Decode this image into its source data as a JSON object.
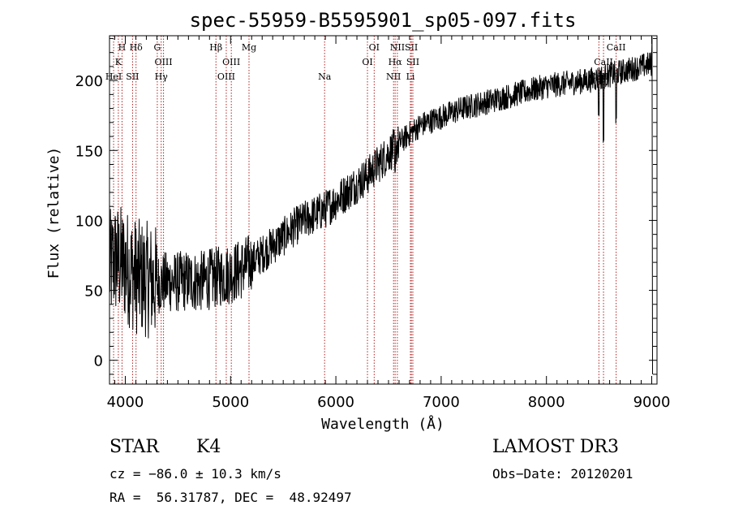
{
  "chart_data": {
    "type": "line",
    "title": "spec-55959-B5595901_sp05-097.fits",
    "xlabel": "Wavelength (Å)",
    "ylabel": "Flux (relative)",
    "xlim": [
      3850,
      9050
    ],
    "ylim": [
      -17,
      232
    ],
    "xticks": [
      4000,
      5000,
      6000,
      7000,
      8000,
      9000
    ],
    "xtick_labels": [
      "4000",
      "5000",
      "6000",
      "7000",
      "8000",
      "9000"
    ],
    "yticks": [
      0,
      50,
      100,
      150,
      200
    ],
    "ytick_labels": [
      "0",
      "50",
      "100",
      "150",
      "200"
    ],
    "line_color": "#000000",
    "marker_color": "#b22222",
    "series": [
      {
        "name": "flux",
        "anchors_x": [
          3850,
          3900,
          3950,
          4000,
          4100,
          4200,
          4300,
          4400,
          4500,
          4600,
          4700,
          4800,
          4900,
          5000,
          5100,
          5200,
          5300,
          5400,
          5500,
          5600,
          5700,
          5800,
          5900,
          6000,
          6100,
          6200,
          6300,
          6400,
          6500,
          6600,
          6700,
          6800,
          7000,
          7200,
          7400,
          7600,
          7800,
          8000,
          8200,
          8400,
          8500,
          8600,
          8700,
          8800,
          8900,
          9000
        ],
        "anchors_y": [
          65,
          72,
          70,
          68,
          60,
          58,
          55,
          56,
          56,
          57,
          56,
          58,
          60,
          62,
          65,
          70,
          76,
          82,
          88,
          95,
          100,
          104,
          108,
          114,
          120,
          126,
          132,
          140,
          148,
          155,
          162,
          168,
          174,
          180,
          184,
          188,
          192,
          196,
          198,
          200,
          202,
          204,
          206,
          208,
          210,
          212
        ]
      }
    ],
    "annotations": [
      {
        "label": "H",
        "wavelength": 3969,
        "row": 0
      },
      {
        "label": "K",
        "wavelength": 3934,
        "row": 1
      },
      {
        "label": "HeI",
        "wavelength": 3889,
        "row": 2
      },
      {
        "label": "Hδ",
        "wavelength": 4102,
        "row": 0
      },
      {
        "label": "SII",
        "wavelength": 4069,
        "row": 2
      },
      {
        "label": "G",
        "wavelength": 4304,
        "row": 0
      },
      {
        "label": "OIII",
        "wavelength": 4363,
        "row": 1
      },
      {
        "label": "Hγ",
        "wavelength": 4341,
        "row": 2
      },
      {
        "label": "Hβ",
        "wavelength": 4861,
        "row": 0
      },
      {
        "label": "OIII",
        "wavelength": 5007,
        "row": 1
      },
      {
        "label": "OIII",
        "wavelength": 4959,
        "row": 2
      },
      {
        "label": "Mg",
        "wavelength": 5175,
        "row": 0
      },
      {
        "label": "Na",
        "wavelength": 5893,
        "row": 2
      },
      {
        "label": "OI",
        "wavelength": 6364,
        "row": 0
      },
      {
        "label": "OI",
        "wavelength": 6300,
        "row": 1
      },
      {
        "label": "NII",
        "wavelength": 6584,
        "row": 0
      },
      {
        "label": "SII",
        "wavelength": 6717,
        "row": 0
      },
      {
        "label": "Hα",
        "wavelength": 6563,
        "row": 1
      },
      {
        "label": "SII",
        "wavelength": 6731,
        "row": 1
      },
      {
        "label": "NII",
        "wavelength": 6548,
        "row": 2
      },
      {
        "label": "Li",
        "wavelength": 6708,
        "row": 2
      },
      {
        "label": "CaII",
        "wavelength": 8662,
        "row": 0
      },
      {
        "label": "CaII",
        "wavelength": 8542,
        "row": 1
      },
      {
        "label": "CaII",
        "wavelength": 8498,
        "row": 2
      }
    ]
  },
  "info": {
    "class": "STAR",
    "subclass": "K4",
    "survey": "LAMOST DR3",
    "redshift": "cz = −86.0 ± 10.3 km/s",
    "obs_date": "Obs−Date: 20120201",
    "coords": "RA =  56.31787, DEC =  48.92497"
  }
}
